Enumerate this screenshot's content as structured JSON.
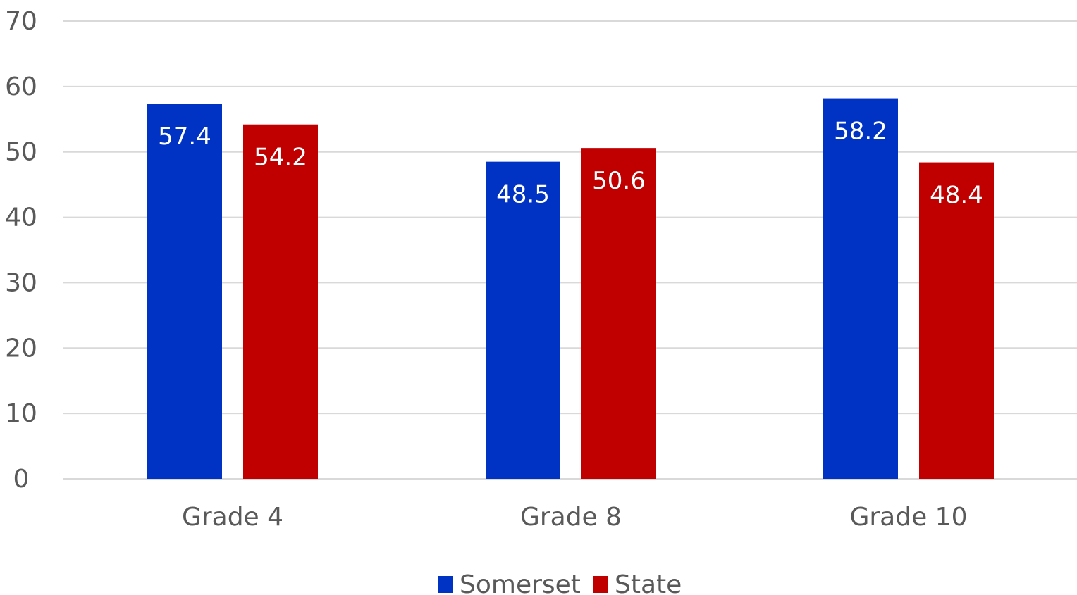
{
  "chart_data": {
    "type": "bar",
    "title": "",
    "xlabel": "",
    "ylabel": "",
    "categories": [
      "Grade 4",
      "Grade 8",
      "Grade 10"
    ],
    "series": [
      {
        "name": "Somerset",
        "values": [
          57.4,
          48.5,
          58.2
        ],
        "color": "#0033c4",
        "labels": [
          "57.4",
          "48.5",
          "58.2"
        ]
      },
      {
        "name": "State",
        "values": [
          54.2,
          50.6,
          48.4
        ],
        "color": "#c00000",
        "labels": [
          "54.2",
          "50.6",
          "48.4"
        ]
      }
    ],
    "ylim": [
      0,
      70
    ],
    "yticks": [
      "0",
      "10",
      "20",
      "30",
      "40",
      "50",
      "60",
      "70"
    ],
    "grid": true,
    "legend_position": "bottom"
  }
}
